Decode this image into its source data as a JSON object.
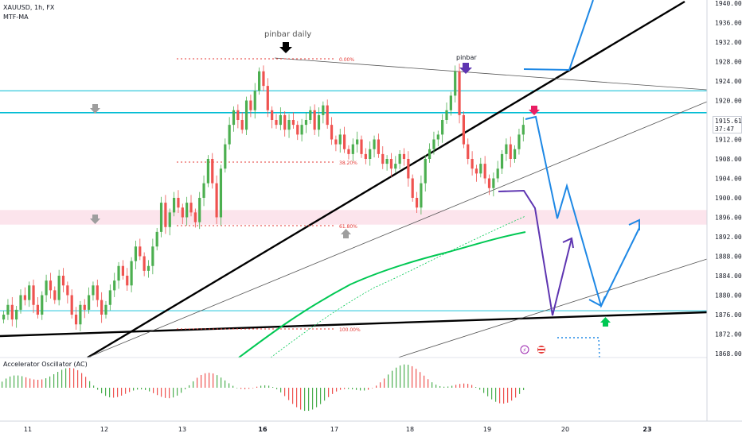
{
  "header": {
    "symbol": "XAUUSD, 1h, FX",
    "indicator": "MTF-MA"
  },
  "oscillator": {
    "label": "Accelerator Oscillator (AC)"
  },
  "last_price": {
    "value": "1915.61",
    "countdown": "37:47"
  },
  "annotations": {
    "pinbar_daily": "pinbar daily",
    "pinbar": "pinbar",
    "fib_0": "0.00%",
    "fib_38": "38.20%",
    "fib_61": "61.80%",
    "fib_100": "100.00%"
  },
  "colors": {
    "bull": "#4caf50",
    "bear": "#ef5350",
    "hline": "#00bcd4",
    "zone": "#fce4ec",
    "ma": "#00c853",
    "projection": "#1e88e5",
    "projection_alt": "#5e35b1",
    "fib": "#e53935"
  },
  "chart_data": {
    "type": "candlestick",
    "y_ticks": [
      1868,
      1872,
      1876,
      1880,
      1884,
      1888,
      1892,
      1896,
      1900,
      1904,
      1908,
      1912,
      1916,
      1920,
      1924,
      1928,
      1932,
      1936,
      1940
    ],
    "y_tick_labels": [
      "1868.00",
      "1872.00",
      "1876.00",
      "1880.00",
      "1884.00",
      "1888.00",
      "1892.00",
      "1896.00",
      "1900.00",
      "1904.00",
      "1908.00",
      "1912.00",
      "1916.00",
      "1920.00",
      "1924.00",
      "1928.00",
      "1932.00",
      "1936.00",
      "1940.00"
    ],
    "x_ticks": [
      "11",
      "12",
      "13",
      "16",
      "17",
      "18",
      "19",
      "20",
      "23"
    ],
    "ylim": [
      1866.5,
      1941.5
    ],
    "horizontal_levels": [
      1917.5,
      1922.0,
      1876.8
    ],
    "zone": [
      1894.5,
      1897.5
    ],
    "series_close": [
      1876,
      1878,
      1875,
      1877,
      1880,
      1879,
      1882,
      1878,
      1876,
      1880,
      1883,
      1881,
      1879,
      1884,
      1882,
      1880,
      1876,
      1874,
      1878,
      1877,
      1880,
      1882,
      1879,
      1876,
      1878,
      1881,
      1883,
      1886,
      1884,
      1882,
      1887,
      1890,
      1888,
      1885,
      1886,
      1890,
      1893,
      1899,
      1894,
      1897,
      1900,
      1898,
      1896,
      1899,
      1897,
      1895,
      1900,
      1903,
      1908,
      1903,
      1896,
      1906,
      1911,
      1915,
      1918,
      1916,
      1914,
      1920,
      1918,
      1922,
      1926,
      1923,
      1918,
      1916,
      1915,
      1917,
      1914,
      1916,
      1915,
      1913,
      1915,
      1916,
      1918,
      1914,
      1917,
      1919,
      1915,
      1912,
      1911,
      1913,
      1910,
      1909,
      1911,
      1912,
      1909,
      1908,
      1910,
      1912,
      1909,
      1907,
      1908,
      1906,
      1907,
      1909,
      1908,
      1904,
      1900,
      1898,
      1903,
      1908,
      1910,
      1912,
      1913,
      1916,
      1918,
      1921,
      1926,
      1917,
      1911,
      1908,
      1906,
      1905,
      1907,
      1904,
      1902,
      1904,
      1906,
      1909,
      1911,
      1908,
      1910,
      1913,
      1915
    ]
  }
}
